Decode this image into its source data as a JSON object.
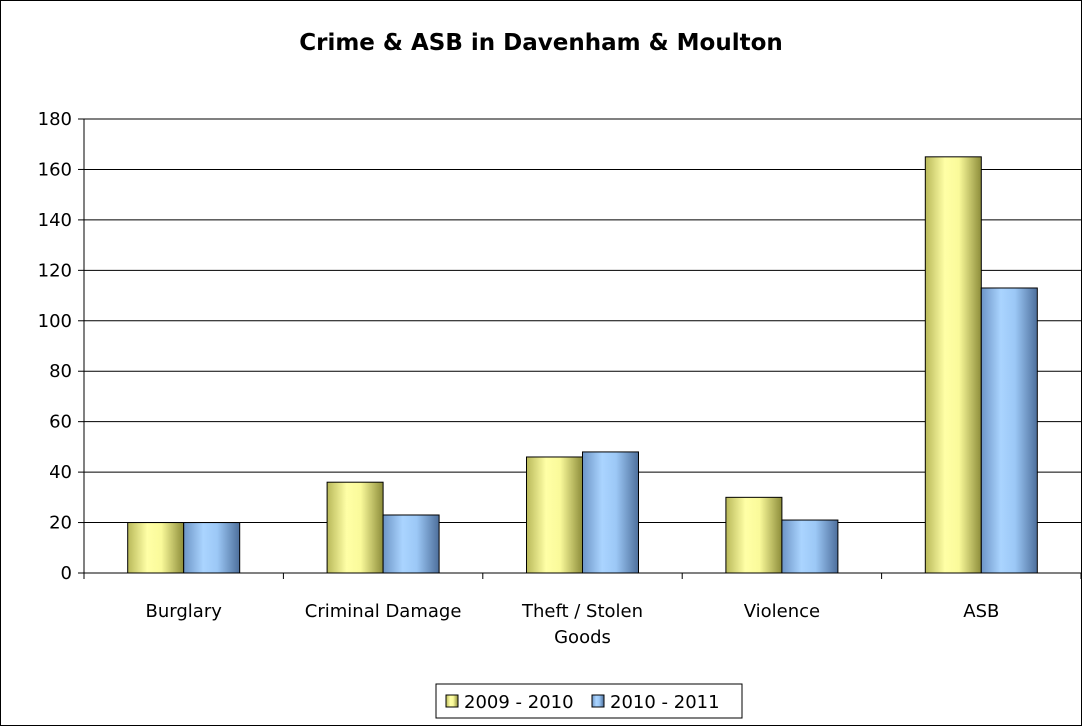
{
  "chart_data": {
    "type": "bar",
    "title": "Crime & ASB in Davenham & Moulton",
    "xlabel": "",
    "ylabel": "",
    "categories": [
      "Burglary",
      "Criminal Damage",
      "Theft / Stolen Goods",
      "Violence",
      "ASB"
    ],
    "category_lines": [
      [
        "Burglary"
      ],
      [
        "Criminal Damage"
      ],
      [
        "Theft / Stolen",
        "Goods"
      ],
      [
        "Violence"
      ],
      [
        "ASB"
      ]
    ],
    "series": [
      {
        "name": "2009 - 2010",
        "values": [
          20,
          36,
          46,
          30,
          165
        ],
        "color": "#FFFF99"
      },
      {
        "name": "2010 - 2011",
        "values": [
          20,
          23,
          48,
          21,
          113
        ],
        "color": "#99CCFF"
      }
    ],
    "ylim": [
      0,
      180
    ],
    "yticks": [
      0,
      20,
      40,
      60,
      80,
      100,
      120,
      140,
      160,
      180
    ],
    "grid": true,
    "legend_position": "bottom"
  }
}
